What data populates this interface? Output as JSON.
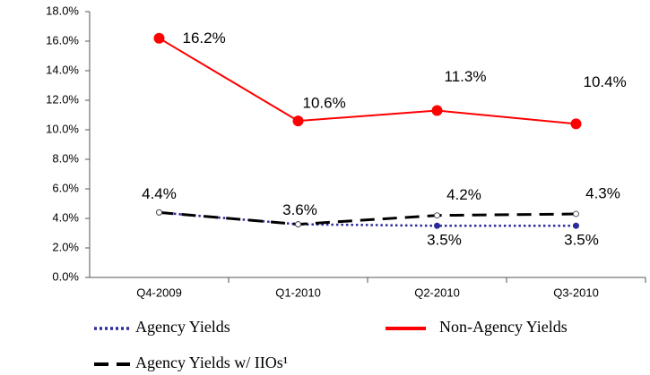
{
  "chart_data": {
    "type": "line",
    "categories": [
      "Q4-2009",
      "Q1-2010",
      "Q2-2010",
      "Q3-2010"
    ],
    "series": [
      {
        "name": "Agency Yields",
        "color": "#2b2b9a",
        "style": "dotted",
        "values": [
          4.4,
          3.6,
          3.5,
          3.5
        ],
        "value_labels": [
          "4.4%",
          "3.6%",
          "3.5%",
          "3.5%"
        ]
      },
      {
        "name": "Non-Agency Yields",
        "color": "#ff0000",
        "style": "solid",
        "values": [
          16.2,
          10.6,
          11.3,
          10.4
        ],
        "value_labels": [
          "16.2%",
          "10.6%",
          "11.3%",
          "10.4%"
        ]
      },
      {
        "name": "Agency Yields w/ IIOs¹",
        "color": "#000000",
        "style": "dashed",
        "values": [
          4.4,
          3.6,
          4.2,
          4.3
        ],
        "value_labels": [
          null,
          null,
          "4.2%",
          "4.3%"
        ]
      }
    ],
    "ylim": [
      0,
      18
    ],
    "yticks": [
      {
        "value": 0,
        "label": "0.0%"
      },
      {
        "value": 2,
        "label": "2.0%"
      },
      {
        "value": 4,
        "label": "4.0%"
      },
      {
        "value": 6,
        "label": "6.0%"
      },
      {
        "value": 8,
        "label": "8.0%"
      },
      {
        "value": 10,
        "label": "10.0%"
      },
      {
        "value": 12,
        "label": "12.0%"
      },
      {
        "value": 14,
        "label": "14.0%"
      },
      {
        "value": 16,
        "label": "16.0%"
      },
      {
        "value": 18,
        "label": "18.0%"
      }
    ],
    "grid": false
  }
}
